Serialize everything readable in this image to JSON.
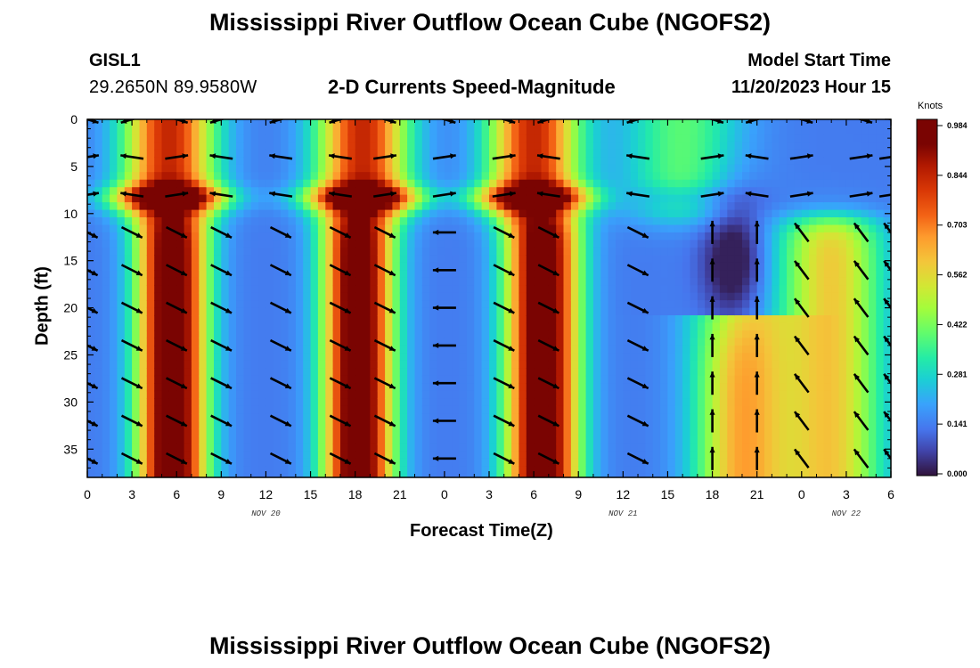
{
  "header": {
    "title": "Mississippi River Outflow Ocean Cube (NGOFS2)",
    "station": "GISL1",
    "coordinates": "29.2650N  89.9580W",
    "subtitle": "2-D Currents Speed-Magnitude",
    "model_start_label": "Model Start Time",
    "model_start_value": "11/20/2023 Hour 15"
  },
  "footer": {
    "title": "Mississippi River Outflow Ocean Cube (NGOFS2)"
  },
  "chart_data": {
    "type": "heatmap",
    "xlabel": "Forecast Time(Z)",
    "ylabel": "Depth (ft)",
    "x_unit": "forecast hour (h after Nov 20 00Z)",
    "xlim": [
      0,
      54
    ],
    "ylim": [
      0,
      38
    ],
    "y_inverted": true,
    "x_ticks": [
      0,
      3,
      6,
      9,
      12,
      15,
      18,
      21,
      24,
      27,
      30,
      33,
      36,
      39,
      42,
      45,
      48,
      51,
      54
    ],
    "x_tick_labels": [
      "0",
      "3",
      "6",
      "9",
      "12",
      "15",
      "18",
      "21",
      "0",
      "3",
      "6",
      "9",
      "12",
      "15",
      "18",
      "21",
      "0",
      "3",
      "6"
    ],
    "y_ticks": [
      0,
      5,
      10,
      15,
      20,
      25,
      30,
      35
    ],
    "y_tick_labels": [
      "0",
      "5",
      "10",
      "15",
      "20",
      "25",
      "30",
      "35"
    ],
    "date_labels": [
      {
        "text": "NOV 20",
        "x": 12
      },
      {
        "text": "NOV 21",
        "x": 36
      },
      {
        "text": "NOV 22",
        "x": 51
      }
    ],
    "colorbar": {
      "title": "Knots",
      "min": 0,
      "max": 0.984,
      "ticks": [
        "0.984",
        "0.844",
        "0.703",
        "0.562",
        "0.422",
        "0.281",
        "0.141",
        "0.000"
      ]
    },
    "speed_field_description": "Peaks (~0.9 kt) in deep layer 10-38 ft at hours 3-8, 16-21, 27-33; surface peaks near 6 and 30; minimum (~0.05 kt) near hour 43, depth 12-20 ft",
    "vector_columns": [
      {
        "x": 0,
        "deep_dir": "down-right"
      },
      {
        "x": 3,
        "deep_dir": "down-right"
      },
      {
        "x": 6,
        "deep_dir": "down-right"
      },
      {
        "x": 9,
        "deep_dir": "down-right"
      },
      {
        "x": 13,
        "deep_dir": "down-right"
      },
      {
        "x": 17,
        "deep_dir": "down-right"
      },
      {
        "x": 20,
        "deep_dir": "down-right"
      },
      {
        "x": 24,
        "deep_dir": "left"
      },
      {
        "x": 28,
        "deep_dir": "down-right"
      },
      {
        "x": 31,
        "deep_dir": "down-right"
      },
      {
        "x": 37,
        "deep_dir": "down-right"
      },
      {
        "x": 42,
        "deep_dir": "up"
      },
      {
        "x": 45,
        "deep_dir": "up"
      },
      {
        "x": 48,
        "deep_dir": "up-left"
      },
      {
        "x": 52,
        "deep_dir": "up-left"
      },
      {
        "x": 54,
        "deep_dir": "up-left"
      }
    ]
  }
}
